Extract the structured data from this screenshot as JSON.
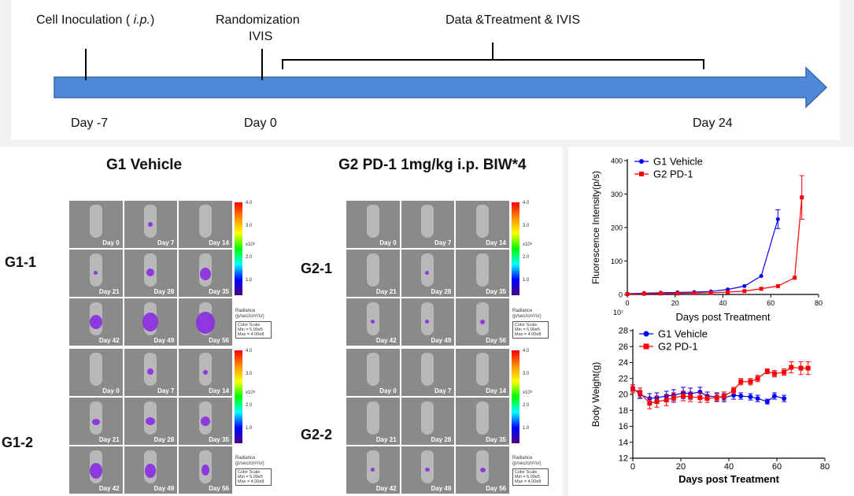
{
  "timeline": {
    "events": [
      {
        "label": "Cell Inoculation ( ",
        "label_italic": "i.p.",
        "label_end": ")"
      },
      {
        "label_line1": "Randomization",
        "label_line2": "IVIS"
      },
      {
        "label": "Data &Treatment & IVIS"
      }
    ],
    "days": [
      "Day -7",
      "Day 0",
      "Day 24"
    ]
  },
  "imaging": {
    "title_g1": "G1 Vehicle",
    "title_g2": "G2 PD-1 1mg/kg i.p. BIW*4",
    "labels": [
      "G1-1",
      "G1-2",
      "G2-1",
      "G2-2"
    ],
    "day_labels_top": [
      "Day 0",
      "Day 7",
      "Day 14",
      "Day 21",
      "Day 28",
      "Day 35",
      "Day 42",
      "Day 49",
      "Day 56"
    ],
    "colorbar": {
      "ticks": [
        "4.0",
        "3.0",
        "2.0",
        "1.0"
      ],
      "exponent": "x10⁸",
      "radiance_label": "Radiance",
      "radiance_unit": "(p/sec/cm²/sr)",
      "scale_title": "Color Scale",
      "scale_min": "Min = 5.00e5",
      "scale_max": "Max = 4.00e8"
    }
  },
  "chart_data": [
    {
      "type": "line",
      "ylabel": "Fluorescence Intensity(p/s)",
      "xlabel": "Days post Treatment",
      "y_multiplier_label": "10⁷",
      "xlim": [
        0,
        80
      ],
      "ylim": [
        0,
        400
      ],
      "xticks": [
        0,
        20,
        40,
        60,
        80
      ],
      "yticks": [
        0,
        100,
        200,
        300,
        400
      ],
      "legend_position": "top-left",
      "series": [
        {
          "name": "G1 Vehicle",
          "color": "#0000ff",
          "marker": "circle",
          "x": [
            0,
            7,
            14,
            21,
            28,
            35,
            42,
            49,
            56,
            63
          ],
          "y": [
            2,
            4,
            5,
            6,
            7,
            9,
            15,
            25,
            55,
            225
          ],
          "err": [
            0,
            0,
            0,
            0,
            0,
            0,
            0,
            0,
            0,
            28
          ]
        },
        {
          "name": "G2 PD-1",
          "color": "#ff0000",
          "marker": "square",
          "x": [
            0,
            7,
            14,
            21,
            28,
            35,
            42,
            49,
            56,
            63,
            70,
            73
          ],
          "y": [
            1,
            2,
            3,
            3,
            4,
            5,
            7,
            10,
            17,
            25,
            50,
            290
          ],
          "err": [
            0,
            0,
            0,
            0,
            0,
            0,
            0,
            0,
            0,
            0,
            0,
            65
          ]
        }
      ]
    },
    {
      "type": "line",
      "ylabel": "Body Weight(g)",
      "xlabel": "Days post Treatment",
      "xlim": [
        0,
        80
      ],
      "ylim": [
        12,
        28
      ],
      "xticks": [
        0,
        20,
        40,
        60,
        80
      ],
      "yticks": [
        12,
        14,
        16,
        18,
        20,
        22,
        24,
        26,
        28
      ],
      "legend_position": "top-left",
      "series": [
        {
          "name": "G1 Vehicle",
          "color": "#0000ff",
          "marker": "circle",
          "x": [
            0,
            3,
            7,
            10,
            14,
            17,
            21,
            24,
            28,
            31,
            35,
            38,
            42,
            45,
            49,
            52,
            56,
            59,
            63
          ],
          "y": [
            20.8,
            20.0,
            19.5,
            19.6,
            19.8,
            19.9,
            20.2,
            20.1,
            20.3,
            19.8,
            19.7,
            19.6,
            19.9,
            19.8,
            19.7,
            19.5,
            19.1,
            19.8,
            19.5
          ],
          "err": [
            0.4,
            0.5,
            0.6,
            0.6,
            0.6,
            0.7,
            0.7,
            0.7,
            0.6,
            0.5,
            0.5,
            0.5,
            0.5,
            0.4,
            0.4,
            0.4,
            0.3,
            0.4,
            0.4
          ]
        },
        {
          "name": "G2 PD-1",
          "color": "#ff0000",
          "marker": "square",
          "x": [
            0,
            3,
            7,
            10,
            14,
            17,
            21,
            24,
            28,
            31,
            35,
            38,
            42,
            45,
            49,
            52,
            56,
            59,
            63,
            66,
            70,
            73
          ],
          "y": [
            20.7,
            20.2,
            18.9,
            19.1,
            19.3,
            19.6,
            19.8,
            19.7,
            19.6,
            19.5,
            19.6,
            19.8,
            20.5,
            21.6,
            21.6,
            22.0,
            22.9,
            22.6,
            22.8,
            23.4,
            23.3,
            23.3
          ],
          "err": [
            0.5,
            0.6,
            0.7,
            0.7,
            0.7,
            0.6,
            0.6,
            0.6,
            0.6,
            0.5,
            0.5,
            0.5,
            0.4,
            0.4,
            0.4,
            0.4,
            0.3,
            0.4,
            0.4,
            0.7,
            0.8,
            0.8
          ]
        }
      ]
    }
  ]
}
